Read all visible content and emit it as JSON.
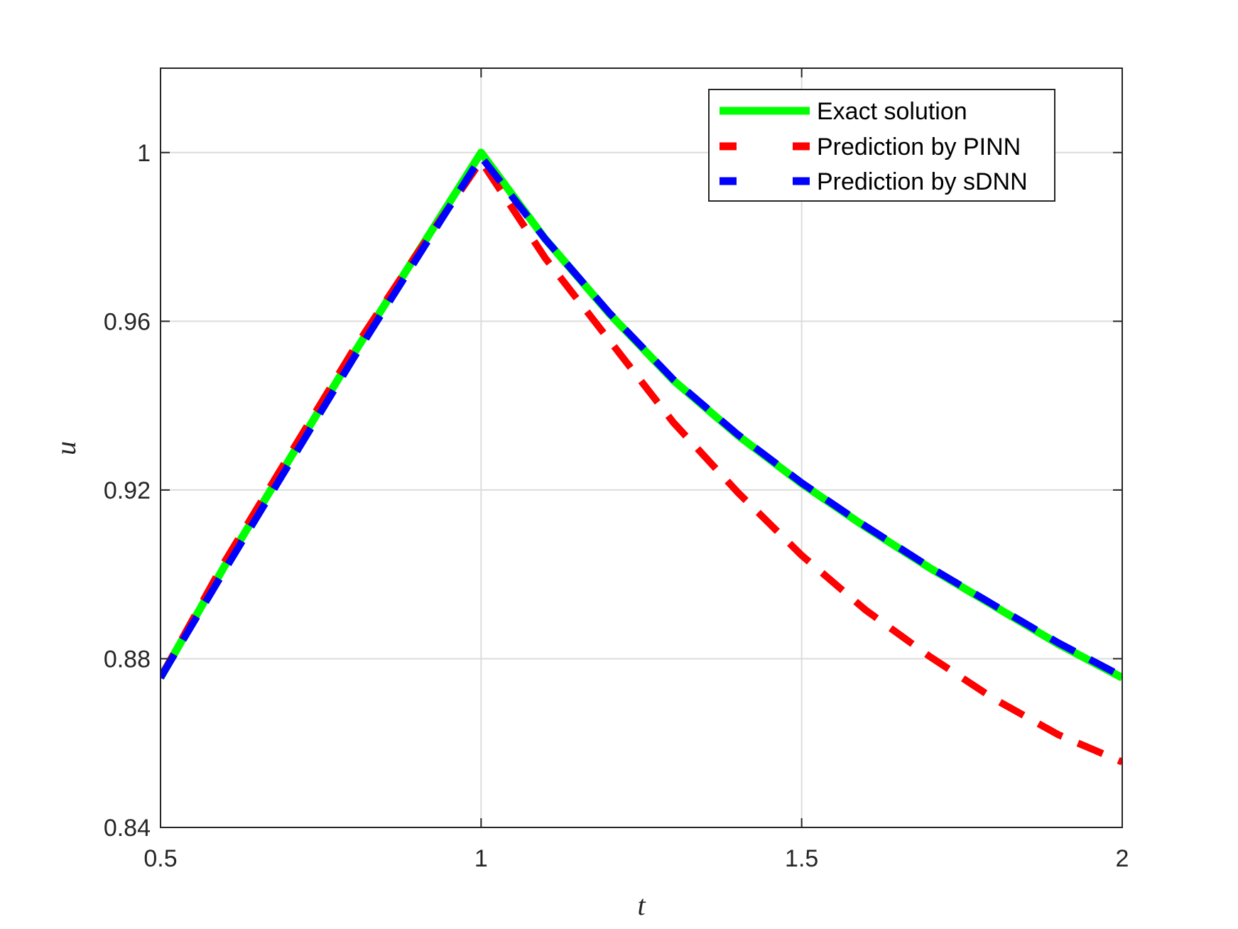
{
  "chart_data": {
    "type": "line",
    "title": "",
    "xlabel": "t",
    "ylabel": "u",
    "xlim": [
      0.5,
      2
    ],
    "ylim": [
      0.84,
      1.02
    ],
    "xticks": [
      0.5,
      1,
      1.5,
      2
    ],
    "xtick_labels": [
      "0.5",
      "1",
      "1.5",
      "2"
    ],
    "yticks": [
      0.84,
      0.88,
      0.92,
      0.96,
      1
    ],
    "ytick_labels": [
      "0.84",
      "0.88",
      "0.92",
      "0.96",
      "1"
    ],
    "grid": true,
    "legend_position": "top-right",
    "series": [
      {
        "name": "Exact solution",
        "color": "#00ff00",
        "style": "solid",
        "x": [
          0.5,
          0.6,
          0.7,
          0.8,
          0.9,
          1.0,
          1.1,
          1.2,
          1.3,
          1.4,
          1.5,
          1.6,
          1.7,
          1.8,
          1.9,
          2.0
        ],
        "y": [
          0.8755,
          0.902,
          0.927,
          0.952,
          0.976,
          1.0,
          0.9795,
          0.9618,
          0.946,
          0.933,
          0.9215,
          0.9112,
          0.9015,
          0.8925,
          0.8835,
          0.8755
        ]
      },
      {
        "name": "Prediction by PINN",
        "color": "#ff0000",
        "style": "dashed",
        "x": [
          0.5,
          0.6,
          0.7,
          0.8,
          0.9,
          1.0,
          1.1,
          1.2,
          1.3,
          1.4,
          1.5,
          1.6,
          1.7,
          1.8,
          1.9,
          2.0
        ],
        "y": [
          0.8755,
          0.903,
          0.928,
          0.953,
          0.976,
          0.998,
          0.975,
          0.9555,
          0.936,
          0.9195,
          0.9045,
          0.8915,
          0.8805,
          0.8705,
          0.862,
          0.8555
        ]
      },
      {
        "name": "Prediction by sDNN",
        "color": "#0000ff",
        "style": "dashed",
        "x": [
          0.5,
          0.6,
          0.7,
          0.8,
          0.9,
          1.0,
          1.1,
          1.2,
          1.3,
          1.4,
          1.5,
          1.6,
          1.7,
          1.8,
          1.9,
          2.0
        ],
        "y": [
          0.8755,
          0.901,
          0.926,
          0.951,
          0.975,
          0.999,
          0.9795,
          0.962,
          0.9462,
          0.9332,
          0.9217,
          0.9114,
          0.9017,
          0.8927,
          0.8838,
          0.8758
        ]
      }
    ]
  }
}
